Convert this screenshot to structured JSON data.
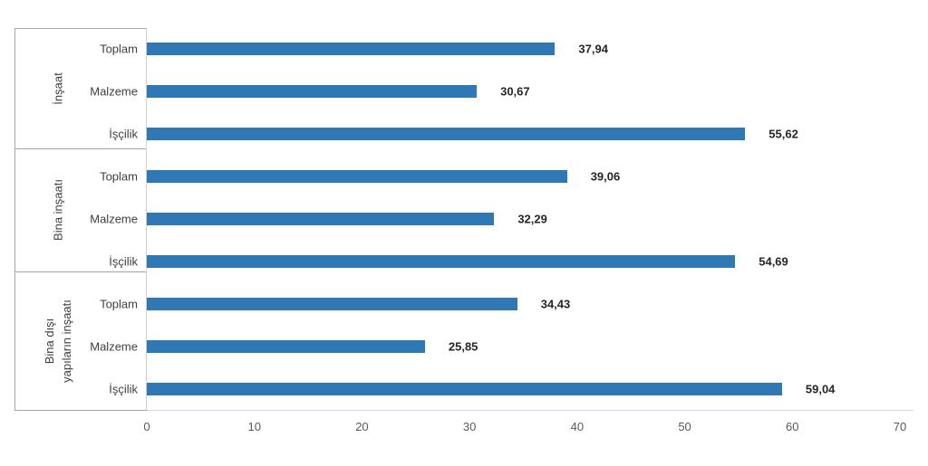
{
  "chart_data": {
    "type": "bar",
    "orientation": "horizontal",
    "title": "",
    "xlabel": "",
    "ylabel": "",
    "xlim": [
      0,
      70
    ],
    "x_ticks": [
      0,
      10,
      20,
      30,
      40,
      50,
      60,
      70
    ],
    "x_tick_labels": [
      "0",
      "10",
      "20",
      "30",
      "40",
      "50",
      "60",
      "70"
    ],
    "grid": false,
    "legend": false,
    "bar_color": "#2E78B6",
    "decimal_separator": ",",
    "groups": [
      {
        "label": "İnşaat",
        "label_lines": [
          "İnşaat"
        ],
        "rows": [
          {
            "label": "Toplam",
            "value": 37.94,
            "display": "37,94"
          },
          {
            "label": "Malzeme",
            "value": 30.67,
            "display": "30,67"
          },
          {
            "label": "İşçilik",
            "value": 55.62,
            "display": "55,62"
          }
        ]
      },
      {
        "label": "Bina inşaatı",
        "label_lines": [
          "Bina inşaatı"
        ],
        "rows": [
          {
            "label": "Toplam",
            "value": 39.06,
            "display": "39,06"
          },
          {
            "label": "Malzeme",
            "value": 32.29,
            "display": "32,29"
          },
          {
            "label": "İşçilik",
            "value": 54.69,
            "display": "54,69"
          }
        ]
      },
      {
        "label": "Bina dışı yapıların inşaatı",
        "label_lines": [
          "Bina dışı",
          "yapıların inşaatı"
        ],
        "rows": [
          {
            "label": "Toplam",
            "value": 34.43,
            "display": "34,43"
          },
          {
            "label": "Malzeme",
            "value": 25.85,
            "display": "25,85"
          },
          {
            "label": "İşçilik",
            "value": 59.04,
            "display": "59,04"
          }
        ]
      }
    ],
    "colors": {
      "bar": "#2E78B6",
      "value_label": "#262626",
      "category_label": "#404040",
      "tick_label": "#595959",
      "border_dark": "#a6a6a6",
      "axis_vertical": "#d0d0d0",
      "axis_bottom": "#d9d9d9"
    }
  }
}
